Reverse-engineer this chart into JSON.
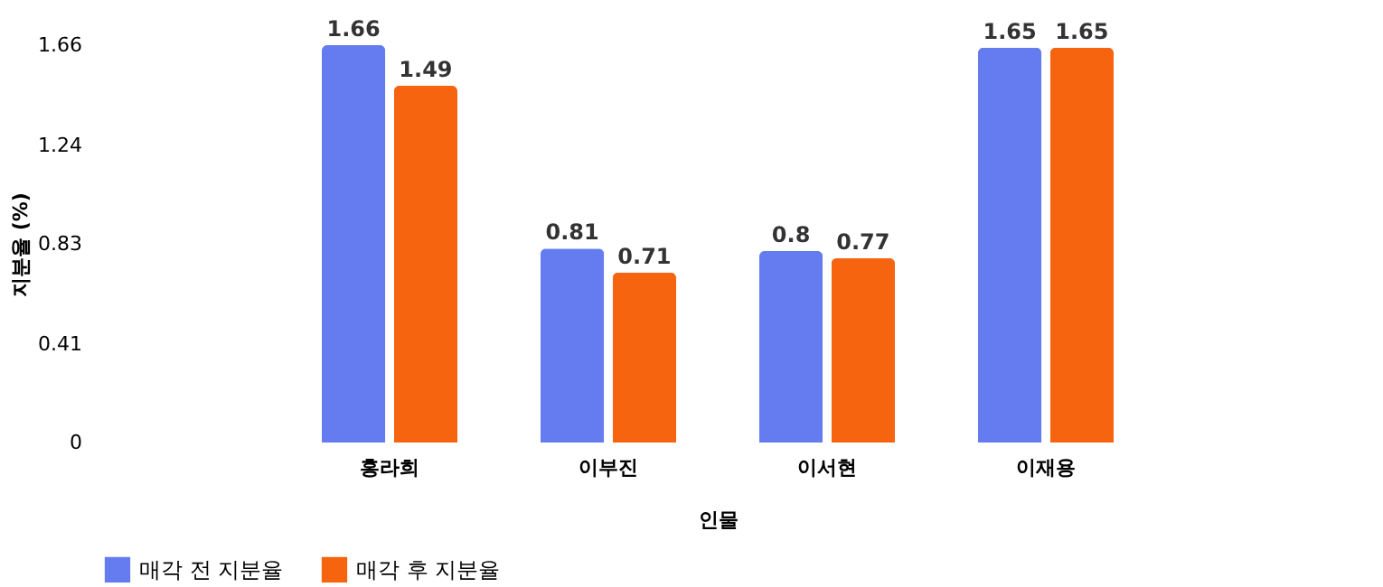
{
  "chart_data": {
    "type": "bar",
    "xlabel": "인물",
    "ylabel": "지분율 (%)",
    "categories": [
      "홍라희",
      "이부진",
      "이서현",
      "이재용"
    ],
    "series": [
      {
        "name": "매각 전 지분율",
        "color": "#647cf0",
        "values": [
          1.66,
          0.81,
          0.8,
          1.65
        ]
      },
      {
        "name": "매각 후 지분율",
        "color": "#f7640f",
        "values": [
          1.49,
          0.71,
          0.77,
          1.65
        ]
      }
    ],
    "ylim": [
      0,
      1.66
    ],
    "yticks": [
      0,
      0.41,
      0.83,
      1.24,
      1.66
    ],
    "grid": false,
    "legend": "bottom left",
    "data_labels": true
  }
}
